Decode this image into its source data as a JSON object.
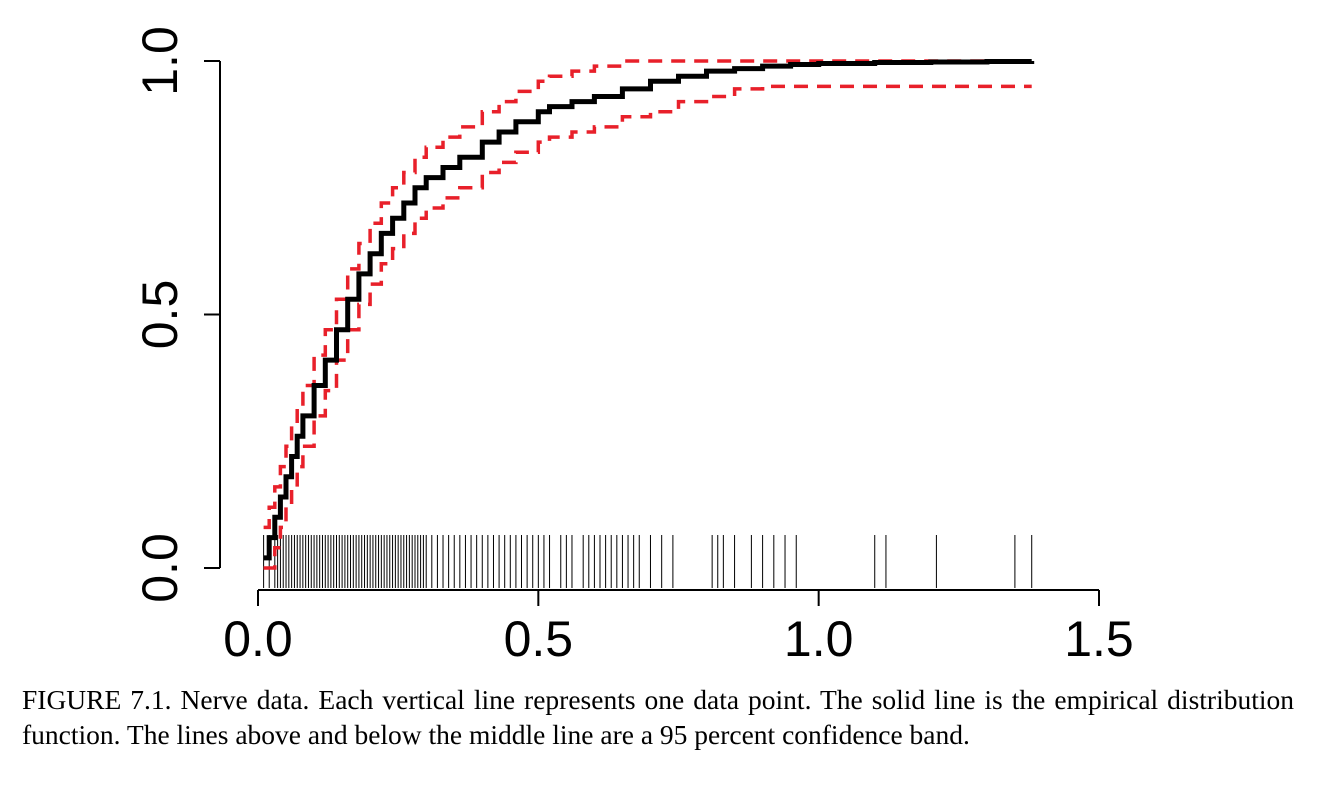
{
  "chart_data": {
    "type": "line",
    "title": "",
    "xlabel": "",
    "ylabel": "",
    "xlim": [
      0.0,
      1.5
    ],
    "ylim": [
      0.0,
      1.0
    ],
    "xticks": [
      "0.0",
      "0.5",
      "1.0",
      "1.5"
    ],
    "yticks": [
      "0.0",
      "0.5",
      "1.0"
    ],
    "grid": false,
    "legend": "none",
    "colors": {
      "ecdf": "#000000",
      "band": "#e8202a",
      "rug": "#000000"
    },
    "rug_points": [
      0.01,
      0.02,
      0.03,
      0.035,
      0.04,
      0.045,
      0.05,
      0.055,
      0.06,
      0.065,
      0.07,
      0.075,
      0.08,
      0.085,
      0.09,
      0.095,
      0.1,
      0.105,
      0.11,
      0.115,
      0.12,
      0.125,
      0.13,
      0.135,
      0.14,
      0.145,
      0.15,
      0.155,
      0.16,
      0.165,
      0.17,
      0.175,
      0.18,
      0.185,
      0.19,
      0.195,
      0.2,
      0.205,
      0.21,
      0.215,
      0.22,
      0.225,
      0.23,
      0.235,
      0.24,
      0.245,
      0.25,
      0.255,
      0.26,
      0.265,
      0.27,
      0.275,
      0.28,
      0.285,
      0.29,
      0.295,
      0.3,
      0.31,
      0.32,
      0.33,
      0.34,
      0.35,
      0.36,
      0.37,
      0.38,
      0.39,
      0.4,
      0.41,
      0.42,
      0.43,
      0.44,
      0.45,
      0.46,
      0.47,
      0.48,
      0.49,
      0.5,
      0.51,
      0.52,
      0.54,
      0.55,
      0.56,
      0.58,
      0.59,
      0.6,
      0.61,
      0.62,
      0.63,
      0.64,
      0.65,
      0.66,
      0.67,
      0.68,
      0.7,
      0.72,
      0.74,
      0.81,
      0.82,
      0.83,
      0.85,
      0.88,
      0.9,
      0.92,
      0.94,
      0.96,
      1.1,
      1.12,
      1.21,
      1.35,
      1.38
    ],
    "series": [
      {
        "role": "empirical distribution function",
        "style": "solid",
        "x": [
          0.01,
          0.02,
          0.03,
          0.04,
          0.05,
          0.06,
          0.07,
          0.08,
          0.1,
          0.12,
          0.14,
          0.16,
          0.18,
          0.2,
          0.22,
          0.24,
          0.26,
          0.28,
          0.3,
          0.33,
          0.36,
          0.4,
          0.43,
          0.46,
          0.5,
          0.52,
          0.56,
          0.6,
          0.65,
          0.7,
          0.75,
          0.8,
          0.85,
          0.9,
          0.95,
          1.0,
          1.1,
          1.2,
          1.3,
          1.38
        ],
        "y": [
          0.02,
          0.06,
          0.1,
          0.14,
          0.18,
          0.22,
          0.26,
          0.3,
          0.36,
          0.41,
          0.47,
          0.53,
          0.58,
          0.62,
          0.66,
          0.69,
          0.72,
          0.75,
          0.77,
          0.79,
          0.81,
          0.84,
          0.86,
          0.88,
          0.9,
          0.91,
          0.92,
          0.93,
          0.945,
          0.96,
          0.97,
          0.98,
          0.985,
          0.99,
          0.993,
          0.995,
          0.997,
          0.998,
          0.999,
          1.0
        ]
      },
      {
        "role": "upper 95 percent confidence band",
        "style": "dashed",
        "x": [
          0.01,
          0.02,
          0.03,
          0.04,
          0.05,
          0.06,
          0.07,
          0.08,
          0.1,
          0.12,
          0.14,
          0.16,
          0.18,
          0.2,
          0.22,
          0.24,
          0.26,
          0.28,
          0.3,
          0.33,
          0.36,
          0.4,
          0.43,
          0.46,
          0.5,
          0.52,
          0.56,
          0.6,
          0.65,
          0.7,
          0.75,
          0.8,
          0.85,
          0.9,
          0.95,
          1.0,
          1.1,
          1.2,
          1.3,
          1.38
        ],
        "y": [
          0.08,
          0.12,
          0.16,
          0.2,
          0.24,
          0.28,
          0.32,
          0.36,
          0.42,
          0.47,
          0.53,
          0.59,
          0.64,
          0.68,
          0.72,
          0.75,
          0.78,
          0.81,
          0.83,
          0.85,
          0.87,
          0.9,
          0.92,
          0.94,
          0.96,
          0.97,
          0.98,
          0.99,
          1.0,
          1.0,
          1.0,
          1.0,
          1.0,
          1.0,
          1.0,
          1.0,
          1.0,
          1.0,
          1.0,
          1.0
        ]
      },
      {
        "role": "lower 95 percent confidence band",
        "style": "dashed",
        "x": [
          0.01,
          0.02,
          0.03,
          0.04,
          0.05,
          0.06,
          0.07,
          0.08,
          0.1,
          0.12,
          0.14,
          0.16,
          0.18,
          0.2,
          0.22,
          0.24,
          0.26,
          0.28,
          0.3,
          0.33,
          0.36,
          0.4,
          0.43,
          0.46,
          0.5,
          0.52,
          0.56,
          0.6,
          0.65,
          0.7,
          0.75,
          0.8,
          0.85,
          0.9,
          0.95,
          1.0,
          1.1,
          1.2,
          1.3,
          1.38
        ],
        "y": [
          0.0,
          0.0,
          0.04,
          0.08,
          0.12,
          0.16,
          0.2,
          0.24,
          0.3,
          0.35,
          0.41,
          0.47,
          0.52,
          0.56,
          0.6,
          0.63,
          0.66,
          0.69,
          0.71,
          0.73,
          0.75,
          0.78,
          0.8,
          0.82,
          0.84,
          0.85,
          0.86,
          0.87,
          0.89,
          0.9,
          0.92,
          0.93,
          0.945,
          0.95,
          0.95,
          0.95,
          0.95,
          0.95,
          0.95,
          0.95
        ]
      }
    ]
  },
  "caption": "FIGURE 7.1. Nerve data. Each vertical line represents one data point. The solid line is the empirical distribution function. The lines above and below the middle line are a 95 percent confidence band."
}
